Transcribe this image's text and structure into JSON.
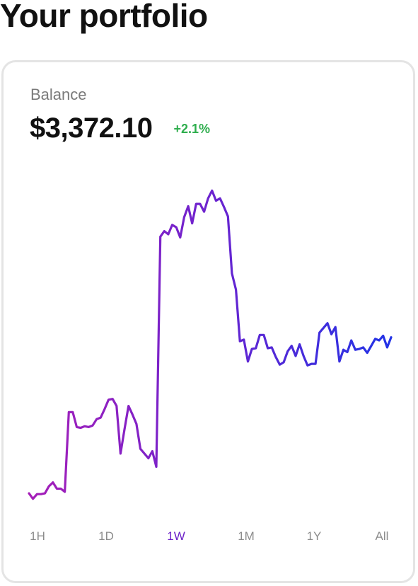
{
  "header": {
    "title": "Your portfolio"
  },
  "card": {
    "balance_label": "Balance",
    "balance_value": "$3,372.10",
    "change": "+2.1%",
    "change_color": "#2fae4e"
  },
  "timeframes": [
    {
      "label": "1H",
      "active": false
    },
    {
      "label": "1D",
      "active": false
    },
    {
      "label": "1W",
      "active": true
    },
    {
      "label": "1M",
      "active": false
    },
    {
      "label": "1Y",
      "active": false
    },
    {
      "label": "All",
      "active": false
    }
  ],
  "colors": {
    "active_tab": "#6d22c9",
    "line_start": "#a61fb8",
    "line_mid": "#6c23cf",
    "line_end": "#2233e6"
  },
  "chart_data": {
    "type": "line",
    "series": [
      {
        "values": [
          9,
          2,
          8,
          8,
          9,
          18,
          23,
          15,
          15,
          11,
          113,
          113,
          94,
          93,
          95,
          94,
          96,
          104,
          106,
          117,
          129,
          130,
          121,
          60,
          91,
          121,
          110,
          98,
          66,
          60,
          54,
          63,
          43,
          338,
          345,
          341,
          353,
          350,
          337,
          363,
          377,
          355,
          380,
          380,
          370,
          387,
          397,
          384,
          387,
          376,
          364,
          291,
          270,
          204,
          206,
          178,
          194,
          195,
          212,
          212,
          195,
          196,
          184,
          174,
          177,
          191,
          198,
          185,
          200,
          185,
          173,
          175,
          175,
          215,
          221,
          227,
          213,
          222,
          178,
          193,
          190,
          205,
          193,
          194,
          196,
          189,
          198,
          207,
          205,
          211,
          196,
          209
        ]
      }
    ]
  }
}
